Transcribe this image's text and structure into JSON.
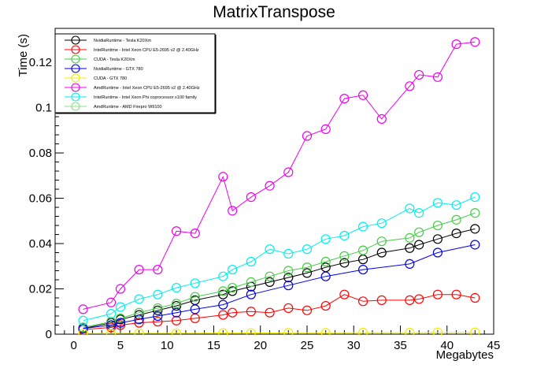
{
  "chart_data": {
    "type": "line",
    "title": "MatrixTranspose",
    "xlabel": "Megabytes",
    "ylabel": "Time (s)",
    "xlim": [
      -2,
      45
    ],
    "ylim": [
      0,
      0.135
    ],
    "x_ticks": [
      0,
      5,
      10,
      15,
      20,
      25,
      30,
      35,
      40,
      45
    ],
    "x_tick_labels": [
      "0",
      "5",
      "10",
      "15",
      "20",
      "25",
      "30",
      "35",
      "40",
      "45"
    ],
    "y_ticks": [
      0,
      0.02,
      0.04,
      0.06,
      0.08,
      0.1,
      0.12
    ],
    "y_tick_labels": [
      "0",
      "0.02",
      "0.04",
      "0.06",
      "0.08",
      "0.1",
      "0.12"
    ],
    "grid": false,
    "legend_position": "top-left",
    "marker": "open-circle",
    "series": [
      {
        "name": "NvidiaRuntime - Tesla K20Xm",
        "color": "#000000",
        "x": [
          1,
          4,
          5,
          7,
          9,
          11,
          13,
          16,
          17,
          19,
          21,
          23,
          25,
          27,
          29,
          31,
          33,
          36,
          37,
          39,
          41,
          43
        ],
        "y": [
          0.0025,
          0.005,
          0.0065,
          0.0085,
          0.0105,
          0.0125,
          0.015,
          0.0175,
          0.019,
          0.021,
          0.023,
          0.025,
          0.027,
          0.0295,
          0.0315,
          0.033,
          0.036,
          0.038,
          0.0395,
          0.042,
          0.0445,
          0.0465
        ]
      },
      {
        "name": "IntelRuntime - Intel Xeon CPU E5-2695 v2 @ 2.40GHz",
        "color": "#ff0000",
        "x": [
          1,
          4,
          5,
          7,
          9,
          11,
          13,
          16,
          17,
          19,
          21,
          23,
          25,
          27,
          29,
          31,
          33,
          36,
          37,
          39,
          41,
          43
        ],
        "y": [
          0.002,
          0.003,
          0.004,
          0.005,
          0.0055,
          0.006,
          0.007,
          0.0085,
          0.0095,
          0.01,
          0.0095,
          0.0115,
          0.0105,
          0.0125,
          0.0175,
          0.0145,
          0.015,
          0.015,
          0.0155,
          0.0175,
          0.0175,
          0.016
        ]
      },
      {
        "name": "CUDA - Tesla K20Xm",
        "color": "#44cc44",
        "x": [
          1,
          4,
          5,
          7,
          9,
          11,
          13,
          16,
          17,
          19,
          21,
          23,
          25,
          27,
          29,
          31,
          33,
          36,
          37,
          39,
          41,
          43
        ],
        "y": [
          0.003,
          0.0055,
          0.007,
          0.0095,
          0.0115,
          0.0135,
          0.0165,
          0.019,
          0.0205,
          0.023,
          0.0255,
          0.028,
          0.0295,
          0.032,
          0.0345,
          0.037,
          0.041,
          0.0425,
          0.045,
          0.048,
          0.0505,
          0.0535
        ]
      },
      {
        "name": "NvidiaRuntime - GTX 780",
        "color": "#0000ee",
        "x": [
          1,
          4,
          5,
          7,
          9,
          11,
          13,
          16,
          19,
          23,
          27,
          31,
          36,
          39,
          43
        ],
        "y": [
          0.0025,
          0.004,
          0.005,
          0.0065,
          0.008,
          0.0095,
          0.011,
          0.013,
          0.0175,
          0.0215,
          0.0255,
          0.0285,
          0.031,
          0.036,
          0.0395
        ]
      },
      {
        "name": "CUDA - GTX 780",
        "color": "#eeee00",
        "x": [
          1,
          4,
          7,
          11,
          16,
          19,
          23,
          27,
          31,
          36,
          39,
          43
        ],
        "y": [
          0.0003,
          0.0003,
          0.0004,
          0.0004,
          0.0005,
          0.0005,
          0.0006,
          0.0006,
          0.0007,
          0.0007,
          0.0008,
          0.0008
        ]
      },
      {
        "name": "AmdRuntime - Intel Xeon CPU E5-2695 v2 @ 2.40GHz",
        "color": "#ee00ee",
        "x": [
          1,
          4,
          5,
          7,
          9,
          11,
          13,
          16,
          17,
          19,
          21,
          23,
          25,
          27,
          29,
          31,
          33,
          36,
          37,
          39,
          41,
          43
        ],
        "y": [
          0.011,
          0.014,
          0.02,
          0.0285,
          0.0285,
          0.0455,
          0.0445,
          0.0695,
          0.0545,
          0.0605,
          0.0655,
          0.0715,
          0.0875,
          0.0905,
          0.104,
          0.1055,
          0.095,
          0.1095,
          0.1145,
          0.1135,
          0.128,
          0.129
        ]
      },
      {
        "name": "IntelRuntime - Intel Xeon Phi coprocessor x100 family",
        "color": "#00eeee",
        "x": [
          1,
          4,
          5,
          7,
          9,
          11,
          13,
          16,
          17,
          19,
          21,
          23,
          25,
          27,
          29,
          31,
          33,
          36,
          37,
          39,
          41,
          43
        ],
        "y": [
          0.006,
          0.009,
          0.012,
          0.0155,
          0.0175,
          0.0205,
          0.0225,
          0.0255,
          0.0285,
          0.032,
          0.0375,
          0.0355,
          0.0375,
          0.042,
          0.0435,
          0.0475,
          0.049,
          0.0555,
          0.0535,
          0.058,
          0.057,
          0.0605
        ]
      },
      {
        "name": "AmdRuntime - AMD Firepro W9100",
        "color": "#88dd88",
        "x": [],
        "y": []
      }
    ]
  }
}
